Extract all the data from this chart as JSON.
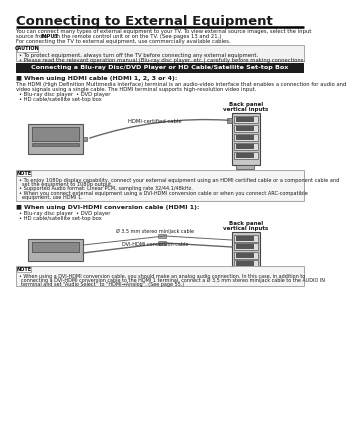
{
  "title": "Connecting to External Equipment",
  "intro_line1": "You can connect many types of external equipment to your TV. To view external source images, select the input",
  "intro_line2_pre": "source from ",
  "intro_line2_bold": "INPUT",
  "intro_line2_post": " on the remote control unit or on the TV. (See pages 13 and 21.)",
  "intro_line3": "For connecting the TV to external equipment, use commercially available cables.",
  "caution_label": "CAUTION",
  "caution_item1": "To protect equipment, always turn off the TV before connecting any external equipment.",
  "caution_item2": "Please read the relevant operation manual (Blu-ray disc player, etc.) carefully before making connections.",
  "section_title": "Connecting a Blu-ray Disc/DVD Player or HD Cable/Satellite Set-top Box",
  "hdmi_header": "■ When using HDMI cable (HDMI 1, 2, 3 or 4):",
  "hdmi_desc1": "The HDMI (High Definition Multimedia Interface) terminal is an audio-video interface that enables a connection for audio and",
  "hdmi_desc2": "video signals using a single cable. The HDMI terminal supports high-resolution video input.",
  "hdmi_bullet1": "Blu-ray disc player",
  "hdmi_bullet1b": "DVD player",
  "hdmi_bullet2": "HD cable/satellite set-top box",
  "back_panel_label1": "Back panel",
  "back_panel_label2": "vertical inputs",
  "hdmi_cable_label": "HDMI-certified cable",
  "note_label": "NOTE",
  "note_item1a": "To enjoy 1080p display capability, connect your external equipment using an HDMI certified cable or a component cable and",
  "note_item1b": "set the equipment to 1080p output.",
  "note_item2": "Supported Audio format: Linear PCM, sampling rate 32/44.1/48kHz.",
  "note_item3a": "When you connect external equipment using a DVI-HDMI conversion cable or when you connect ARC-compatible",
  "note_item3b": "equipment, use HDMI 1.",
  "dvi_header": "■ When using DVI-HDMI conversion cable (HDMI 1):",
  "dvi_bullet1": "Blu-ray disc player",
  "dvi_bullet1b": "DVD player",
  "dvi_bullet2": "HD cable/satellite set-top box",
  "back_panel_label3": "Back panel",
  "back_panel_label4": "vertical inputs",
  "dvi_cable_label": "Ø 3.5 mm stereo minijack cable",
  "dvi_cable_label2": "DVI-HDMI conversion cable",
  "note2_label": "NOTE",
  "note2_text1": "When using a DVI-HDMI conversion cable, you should make an analog audio connection. In this case, in addition to",
  "note2_text2": "connecting a DVI-HDMI conversion cable to the HDMI 1 terminal, connect a Ø 3.5 mm stereo minijack cable to the AUDIO IN",
  "note2_text3": "terminal and set “Audio Select” to “HDMI→Analog”. (See page 55.)",
  "bg_color": "#ffffff",
  "text_color": "#1a1a1a",
  "section_bg": "#1c1c1c",
  "section_text_color": "#ffffff",
  "caution_border": "#999999",
  "note_border": "#999999",
  "line_color": "#000000",
  "device_fill": "#b0b0b0",
  "device_edge": "#555555",
  "panel_fill": "#c8c8c8",
  "panel_edge": "#444444",
  "slot_fill": "#888888",
  "cable_color": "#666666"
}
